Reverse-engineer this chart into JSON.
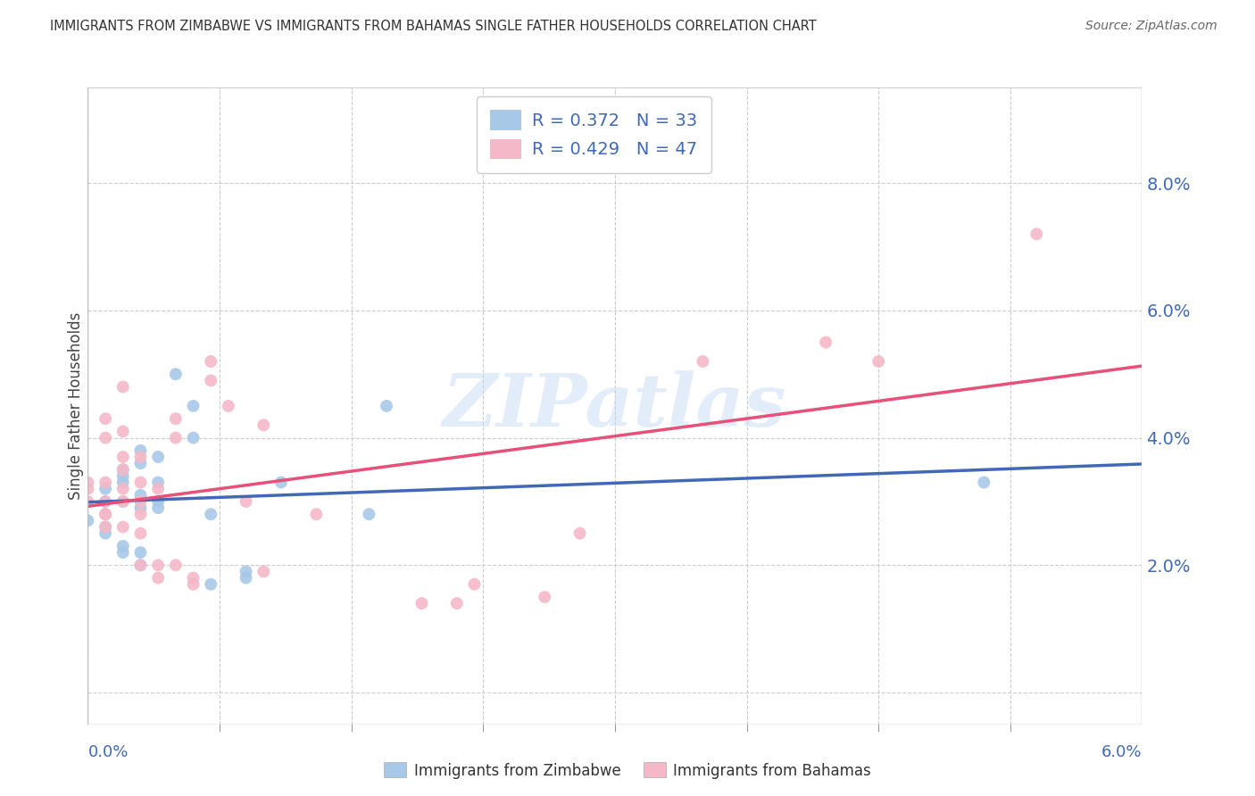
{
  "title": "IMMIGRANTS FROM ZIMBABWE VS IMMIGRANTS FROM BAHAMAS SINGLE FATHER HOUSEHOLDS CORRELATION CHART",
  "source": "Source: ZipAtlas.com",
  "ylabel": "Single Father Households",
  "legend_entries": [
    {
      "label": "Immigrants from Zimbabwe",
      "R": 0.372,
      "N": 33,
      "color": "#a8c8e8"
    },
    {
      "label": "Immigrants from Bahamas",
      "R": 0.429,
      "N": 47,
      "color": "#f4b8c8"
    }
  ],
  "x_range": [
    0.0,
    0.06
  ],
  "y_range": [
    -0.005,
    0.095
  ],
  "y_ticks": [
    0.0,
    0.02,
    0.04,
    0.06,
    0.08
  ],
  "y_tick_labels": [
    "",
    "2.0%",
    "4.0%",
    "6.0%",
    "8.0%"
  ],
  "watermark": "ZIPatlas",
  "zimbabwe_scatter": [
    [
      0.0,
      0.027
    ],
    [
      0.001,
      0.03
    ],
    [
      0.001,
      0.028
    ],
    [
      0.001,
      0.032
    ],
    [
      0.001,
      0.025
    ],
    [
      0.001,
      0.026
    ],
    [
      0.002,
      0.035
    ],
    [
      0.002,
      0.034
    ],
    [
      0.002,
      0.022
    ],
    [
      0.002,
      0.03
    ],
    [
      0.002,
      0.033
    ],
    [
      0.002,
      0.023
    ],
    [
      0.003,
      0.038
    ],
    [
      0.003,
      0.036
    ],
    [
      0.003,
      0.031
    ],
    [
      0.003,
      0.029
    ],
    [
      0.003,
      0.022
    ],
    [
      0.003,
      0.02
    ],
    [
      0.004,
      0.037
    ],
    [
      0.004,
      0.033
    ],
    [
      0.004,
      0.03
    ],
    [
      0.004,
      0.029
    ],
    [
      0.005,
      0.05
    ],
    [
      0.006,
      0.045
    ],
    [
      0.006,
      0.04
    ],
    [
      0.007,
      0.028
    ],
    [
      0.007,
      0.017
    ],
    [
      0.009,
      0.019
    ],
    [
      0.009,
      0.018
    ],
    [
      0.011,
      0.033
    ],
    [
      0.016,
      0.028
    ],
    [
      0.017,
      0.045
    ],
    [
      0.051,
      0.033
    ]
  ],
  "bahamas_scatter": [
    [
      0.0,
      0.033
    ],
    [
      0.0,
      0.032
    ],
    [
      0.0,
      0.03
    ],
    [
      0.001,
      0.043
    ],
    [
      0.001,
      0.04
    ],
    [
      0.001,
      0.033
    ],
    [
      0.001,
      0.03
    ],
    [
      0.001,
      0.028
    ],
    [
      0.001,
      0.026
    ],
    [
      0.001,
      0.028
    ],
    [
      0.002,
      0.048
    ],
    [
      0.002,
      0.041
    ],
    [
      0.002,
      0.037
    ],
    [
      0.002,
      0.035
    ],
    [
      0.002,
      0.032
    ],
    [
      0.002,
      0.03
    ],
    [
      0.002,
      0.026
    ],
    [
      0.003,
      0.037
    ],
    [
      0.003,
      0.033
    ],
    [
      0.003,
      0.03
    ],
    [
      0.003,
      0.028
    ],
    [
      0.003,
      0.025
    ],
    [
      0.003,
      0.02
    ],
    [
      0.004,
      0.032
    ],
    [
      0.004,
      0.02
    ],
    [
      0.004,
      0.018
    ],
    [
      0.005,
      0.043
    ],
    [
      0.005,
      0.04
    ],
    [
      0.005,
      0.02
    ],
    [
      0.006,
      0.018
    ],
    [
      0.006,
      0.017
    ],
    [
      0.007,
      0.052
    ],
    [
      0.007,
      0.049
    ],
    [
      0.008,
      0.045
    ],
    [
      0.009,
      0.03
    ],
    [
      0.01,
      0.042
    ],
    [
      0.01,
      0.019
    ],
    [
      0.013,
      0.028
    ],
    [
      0.019,
      0.014
    ],
    [
      0.021,
      0.014
    ],
    [
      0.022,
      0.017
    ],
    [
      0.026,
      0.015
    ],
    [
      0.028,
      0.025
    ],
    [
      0.035,
      0.052
    ],
    [
      0.042,
      0.055
    ],
    [
      0.045,
      0.052
    ],
    [
      0.054,
      0.072
    ]
  ],
  "zimbabwe_dot_color": "#a8c8e8",
  "bahamas_dot_color": "#f4b8c8",
  "line_zimbabwe_color": "#4169B8",
  "line_bahamas_color": "#E8507A",
  "background_color": "#ffffff",
  "grid_color": "#cccccc",
  "text_blue": "#4169B8",
  "tick_label_color": "#4169B8",
  "title_color": "#333333",
  "source_color": "#666666"
}
